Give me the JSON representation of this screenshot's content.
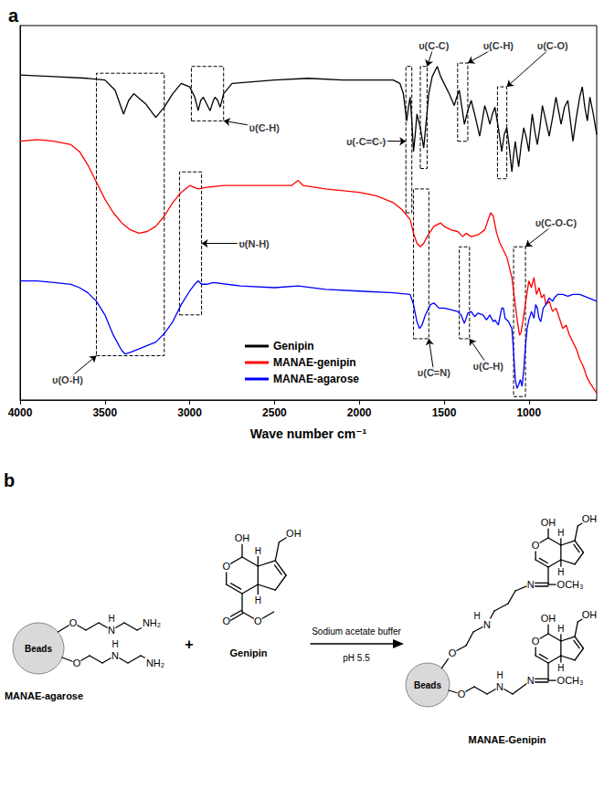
{
  "chart_data": {
    "type": "line",
    "title": "a",
    "x_label": "Wave number cm⁻¹",
    "xlim": [
      4000,
      600
    ],
    "xticks": [
      4000,
      3500,
      3000,
      2500,
      2000,
      1500,
      1000
    ],
    "ylim": [
      0,
      110
    ],
    "tick_labels": "x",
    "grid": false,
    "legend": "lower center",
    "series": [
      {
        "name": "Genipin",
        "color": "#000000",
        "x": [
          4000,
          3800,
          3600,
          3500,
          3440,
          3390,
          3360,
          3330,
          3260,
          3200,
          3150,
          3100,
          3050,
          3000,
          2970,
          2950,
          2935,
          2920,
          2900,
          2880,
          2860,
          2850,
          2835,
          2820,
          2800,
          2750,
          2500,
          2300,
          2100,
          2000,
          1800,
          1760,
          1740,
          1720,
          1710,
          1700,
          1690,
          1680,
          1670,
          1660,
          1640,
          1620,
          1605,
          1590,
          1570,
          1540,
          1520,
          1500,
          1470,
          1440,
          1425,
          1410,
          1395,
          1380,
          1360,
          1340,
          1315,
          1290,
          1275,
          1260,
          1245,
          1230,
          1215,
          1200,
          1180,
          1160,
          1145,
          1130,
          1115,
          1100,
          1090,
          1080,
          1070,
          1060,
          1045,
          1030,
          1015,
          1000,
          990,
          980,
          965,
          950,
          935,
          920,
          900,
          880,
          860,
          840,
          825,
          810,
          790,
          770,
          755,
          740,
          720,
          700,
          685,
          670,
          655,
          640,
          620,
          600
        ],
        "values": [
          95.5,
          95,
          94.5,
          94,
          91,
          84,
          88,
          90,
          87,
          83,
          86,
          90,
          93,
          92,
          89,
          85,
          88,
          89,
          87,
          85,
          88,
          89,
          88,
          86,
          90,
          93,
          94,
          94.5,
          94,
          94,
          94,
          93,
          90,
          82,
          86,
          89,
          82,
          73,
          78,
          84,
          80,
          74,
          82,
          90,
          95,
          98,
          95,
          93,
          90,
          86.5,
          89,
          91,
          86,
          81,
          85,
          88,
          83,
          77.5,
          82,
          86.5,
          84,
          81,
          84,
          86,
          80,
          73,
          78,
          80,
          74,
          67,
          72,
          76,
          72,
          68.5,
          75,
          80,
          77,
          73,
          79,
          84,
          79,
          75,
          80,
          86.5,
          82,
          77.5,
          83,
          89,
          85,
          81,
          86,
          88,
          82,
          76,
          83,
          89,
          92,
          86,
          82,
          89,
          84,
          78
        ]
      },
      {
        "name": "MANAE-genipin",
        "color": "#ff0000",
        "x": [
          4000,
          3900,
          3800,
          3700,
          3650,
          3600,
          3550,
          3500,
          3450,
          3400,
          3350,
          3300,
          3250,
          3200,
          3150,
          3100,
          3050,
          3000,
          2950,
          2900,
          2800,
          2600,
          2400,
          2360,
          2330,
          2200,
          2000,
          1900,
          1800,
          1750,
          1700,
          1680,
          1660,
          1640,
          1620,
          1600,
          1560,
          1520,
          1500,
          1460,
          1420,
          1390,
          1370,
          1340,
          1300,
          1260,
          1240,
          1225,
          1210,
          1190,
          1170,
          1150,
          1130,
          1110,
          1100,
          1085,
          1070,
          1055,
          1045,
          1030,
          1015,
          1000,
          985,
          970,
          955,
          940,
          925,
          910,
          900,
          880,
          860,
          840,
          820,
          800,
          780,
          760,
          740,
          720,
          700,
          680,
          660,
          640,
          620,
          600
        ],
        "values": [
          76,
          76.5,
          76,
          75,
          73,
          69,
          64,
          59,
          55,
          52,
          50,
          49,
          49.5,
          51,
          54,
          58,
          61,
          63,
          62,
          62.5,
          63,
          63,
          63,
          64.5,
          63,
          62,
          61,
          60,
          58,
          56,
          53,
          49,
          46,
          45,
          46,
          48,
          51,
          52,
          51,
          50,
          49.5,
          48,
          49,
          48,
          48.5,
          50,
          53,
          55,
          54,
          49,
          46,
          44,
          42,
          38,
          36,
          30,
          24,
          19,
          20,
          25,
          30,
          35,
          33,
          36,
          31,
          33,
          30,
          31,
          28,
          29,
          26,
          27,
          24,
          21,
          22,
          19,
          17,
          15,
          12,
          10,
          7,
          5,
          3.5,
          2
        ]
      },
      {
        "name": "MANAE-agarose",
        "color": "#0000ff",
        "x": [
          4000,
          3900,
          3800,
          3700,
          3650,
          3600,
          3550,
          3500,
          3450,
          3400,
          3380,
          3350,
          3300,
          3250,
          3200,
          3150,
          3100,
          3050,
          3000,
          2970,
          2950,
          2930,
          2900,
          2860,
          2700,
          2500,
          2360,
          2200,
          2000,
          1800,
          1700,
          1680,
          1660,
          1645,
          1630,
          1610,
          1580,
          1560,
          1530,
          1500,
          1460,
          1420,
          1400,
          1380,
          1360,
          1340,
          1320,
          1300,
          1270,
          1250,
          1230,
          1210,
          1200,
          1180,
          1160,
          1150,
          1140,
          1120,
          1100,
          1090,
          1080,
          1070,
          1060,
          1050,
          1040,
          1030,
          1020,
          1010,
          1000,
          985,
          970,
          960,
          950,
          940,
          930,
          915,
          900,
          880,
          860,
          850,
          830,
          800,
          770,
          740,
          700,
          650,
          600
        ],
        "values": [
          35,
          35,
          34.5,
          34,
          33,
          31.5,
          29,
          25,
          19,
          14.5,
          13.5,
          14,
          15,
          16,
          17,
          19.5,
          23,
          28,
          32,
          34,
          35,
          34,
          34,
          34.5,
          33.5,
          33,
          33.5,
          32.5,
          32,
          31.5,
          31,
          28,
          23,
          21,
          22,
          25,
          28,
          28.5,
          27,
          27,
          26.5,
          26,
          25,
          22.5,
          25.5,
          26,
          24.5,
          25.5,
          25,
          23.5,
          25,
          23,
          23.5,
          22,
          27,
          27,
          24,
          23,
          21,
          14,
          6,
          3.4,
          4.5,
          6,
          4,
          9,
          16,
          21,
          23.5,
          26,
          24,
          28,
          27,
          24,
          23,
          27,
          28,
          30,
          29,
          30,
          31,
          31,
          30.5,
          31,
          31,
          30,
          29
        ]
      }
    ],
    "annotations": [
      {
        "text": "υ(O-H)",
        "x": 3720,
        "y": 6,
        "box_x": [
          3550,
          3150
        ],
        "box_y": [
          13,
          96
        ]
      },
      {
        "text": "υ(C-H)",
        "x": 2560,
        "y": 80,
        "box_x": [
          2990,
          2800
        ],
        "box_y": [
          82,
          98
        ]
      },
      {
        "text": "υ(N-H)",
        "x": 2620,
        "y": 46,
        "box_x": [
          3060,
          2930
        ],
        "box_y": [
          25,
          67
        ]
      },
      {
        "text": "υ(C-C)",
        "x": 1560,
        "y": 104,
        "box_x": [
          1640,
          1600
        ],
        "box_y": [
          68,
          98
        ]
      },
      {
        "text": "υ(-C=C-)",
        "x": 1960,
        "y": 76,
        "box_x": [
          1725,
          1690
        ],
        "box_y": [
          55,
          98
        ]
      },
      {
        "text": "υ(C-H)",
        "x": 1180,
        "y": 104,
        "box_x": [
          1420,
          1360
        ],
        "box_y": [
          76,
          99
        ]
      },
      {
        "text": "υ(C-O)",
        "x": 860,
        "y": 104,
        "box_x": [
          1185,
          1130
        ],
        "box_y": [
          65,
          92
        ]
      },
      {
        "text": "υ(C=N)",
        "x": 1560,
        "y": 8,
        "box_x": [
          1680,
          1590
        ],
        "box_y": [
          18,
          62
        ]
      },
      {
        "text": "υ(C-H)",
        "x": 1240,
        "y": 10,
        "box_x": [
          1410,
          1350
        ],
        "box_y": [
          18,
          45
        ]
      },
      {
        "text": "υ(C-O-C)",
        "x": 840,
        "y": 52,
        "box_x": [
          1090,
          1020
        ],
        "box_y": [
          1,
          45
        ]
      }
    ]
  },
  "scheme": {
    "letter": "b",
    "bead": "Beads",
    "reactant": "MANAE-agarose",
    "plus": "+",
    "reagent": "Genipin",
    "condition_above": "Sodium acetate buffer",
    "condition_below": "pH 5.5",
    "product": "MANAE-Genipin",
    "atoms": {
      "O": "O",
      "N": "N",
      "H": "H",
      "NH2": "NH₂",
      "OH": "OH",
      "OCH3": "OCH₃"
    }
  }
}
